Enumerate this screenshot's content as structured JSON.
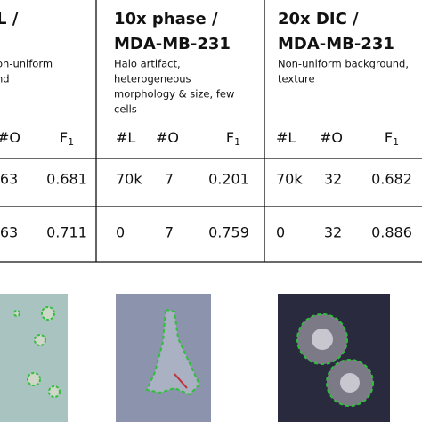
{
  "table": {
    "columns": [
      {
        "title": [
          "L /"
        ],
        "description": [
          "on-uniform",
          "nd"
        ],
        "headers": [
          {
            "main": "#O"
          },
          {
            "main": "F",
            "sub": "1"
          }
        ],
        "rows": [
          [
            "63",
            "0.681"
          ],
          [
            "63",
            "0.711"
          ]
        ]
      },
      {
        "title": [
          "10x phase /",
          "MDA-MB-231"
        ],
        "description": [
          "Halo artifact,",
          "heterogeneous",
          "morphology & size, few",
          "cells"
        ],
        "headers": [
          {
            "main": "#L"
          },
          {
            "main": "#O"
          },
          {
            "main": "F",
            "sub": "1"
          }
        ],
        "rows": [
          [
            "70k",
            "7",
            "0.201"
          ],
          [
            "0",
            "7",
            "0.759"
          ]
        ]
      },
      {
        "title": [
          "20x DIC /",
          "MDA-MB-231"
        ],
        "description": [
          "Non-uniform background,",
          "texture"
        ],
        "headers": [
          {
            "main": "#L"
          },
          {
            "main": "#O"
          },
          {
            "main": "F",
            "sub": "1"
          }
        ],
        "rows": [
          [
            "70k",
            "32",
            "0.682"
          ],
          [
            "0",
            "32",
            "0.886"
          ]
        ]
      }
    ]
  }
}
